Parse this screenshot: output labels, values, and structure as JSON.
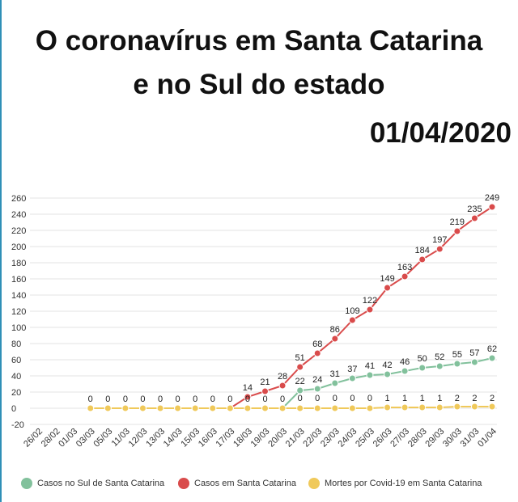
{
  "header": {
    "title_line1": "O coronavírus em Santa Catarina",
    "title_line2": "e no Sul do estado",
    "date": "01/04/2020"
  },
  "chart_data": {
    "type": "line",
    "categories": [
      "26/02",
      "28/02",
      "01/03",
      "03/03",
      "05/03",
      "11/03",
      "12/03",
      "13/03",
      "14/03",
      "15/03",
      "16/03",
      "17/03",
      "18/03",
      "19/03",
      "20/03",
      "21/03",
      "22/03",
      "23/03",
      "24/03",
      "25/03",
      "26/03",
      "27/03",
      "28/03",
      "29/03",
      "30/03",
      "31/03",
      "01/04"
    ],
    "yticks": [
      -20,
      0,
      20,
      40,
      60,
      80,
      100,
      120,
      140,
      160,
      180,
      200,
      220,
      240,
      260
    ],
    "ylim": [
      -20,
      260
    ],
    "grid": true,
    "legend_position": "bottom",
    "series": [
      {
        "name": "Casos no Sul de Santa Catarina",
        "color": "#82c19c",
        "values": [
          null,
          null,
          null,
          0,
          0,
          0,
          0,
          0,
          0,
          0,
          0,
          0,
          0,
          0,
          0,
          22,
          24,
          31,
          37,
          41,
          42,
          46,
          50,
          52,
          55,
          57,
          62
        ],
        "labels": [
          null,
          null,
          null,
          null,
          null,
          null,
          null,
          null,
          null,
          null,
          null,
          null,
          "0",
          "0",
          "0",
          "22",
          "24",
          "31",
          "37",
          "41",
          "42",
          "46",
          "50",
          "52",
          "55",
          "57",
          "62"
        ]
      },
      {
        "name": "Casos em Santa Catarina",
        "color": "#d94b4b",
        "values": [
          null,
          null,
          null,
          0,
          0,
          0,
          0,
          0,
          0,
          0,
          0,
          0,
          14,
          21,
          28,
          51,
          68,
          86,
          109,
          122,
          149,
          163,
          184,
          197,
          219,
          235,
          249
        ],
        "labels": [
          null,
          null,
          null,
          "0",
          "0",
          "0",
          "0",
          "0",
          "0",
          "0",
          "0",
          "0",
          "14",
          "21",
          "28",
          "51",
          "68",
          "86",
          "109",
          "122",
          "149",
          "163",
          "184",
          "197",
          "219",
          "235",
          "249"
        ]
      },
      {
        "name": "Mortes por Covid-19 em Santa Catarina",
        "color": "#f0c95a",
        "values": [
          null,
          null,
          null,
          0,
          0,
          0,
          0,
          0,
          0,
          0,
          0,
          0,
          0,
          0,
          0,
          0,
          0,
          0,
          0,
          0,
          1,
          1,
          1,
          1,
          2,
          2,
          2
        ],
        "labels": [
          null,
          null,
          null,
          null,
          null,
          null,
          null,
          null,
          null,
          null,
          null,
          null,
          null,
          null,
          null,
          "0",
          "0",
          "0",
          "0",
          "0",
          "1",
          "1",
          "1",
          "1",
          "2",
          "2",
          "2"
        ]
      }
    ]
  }
}
